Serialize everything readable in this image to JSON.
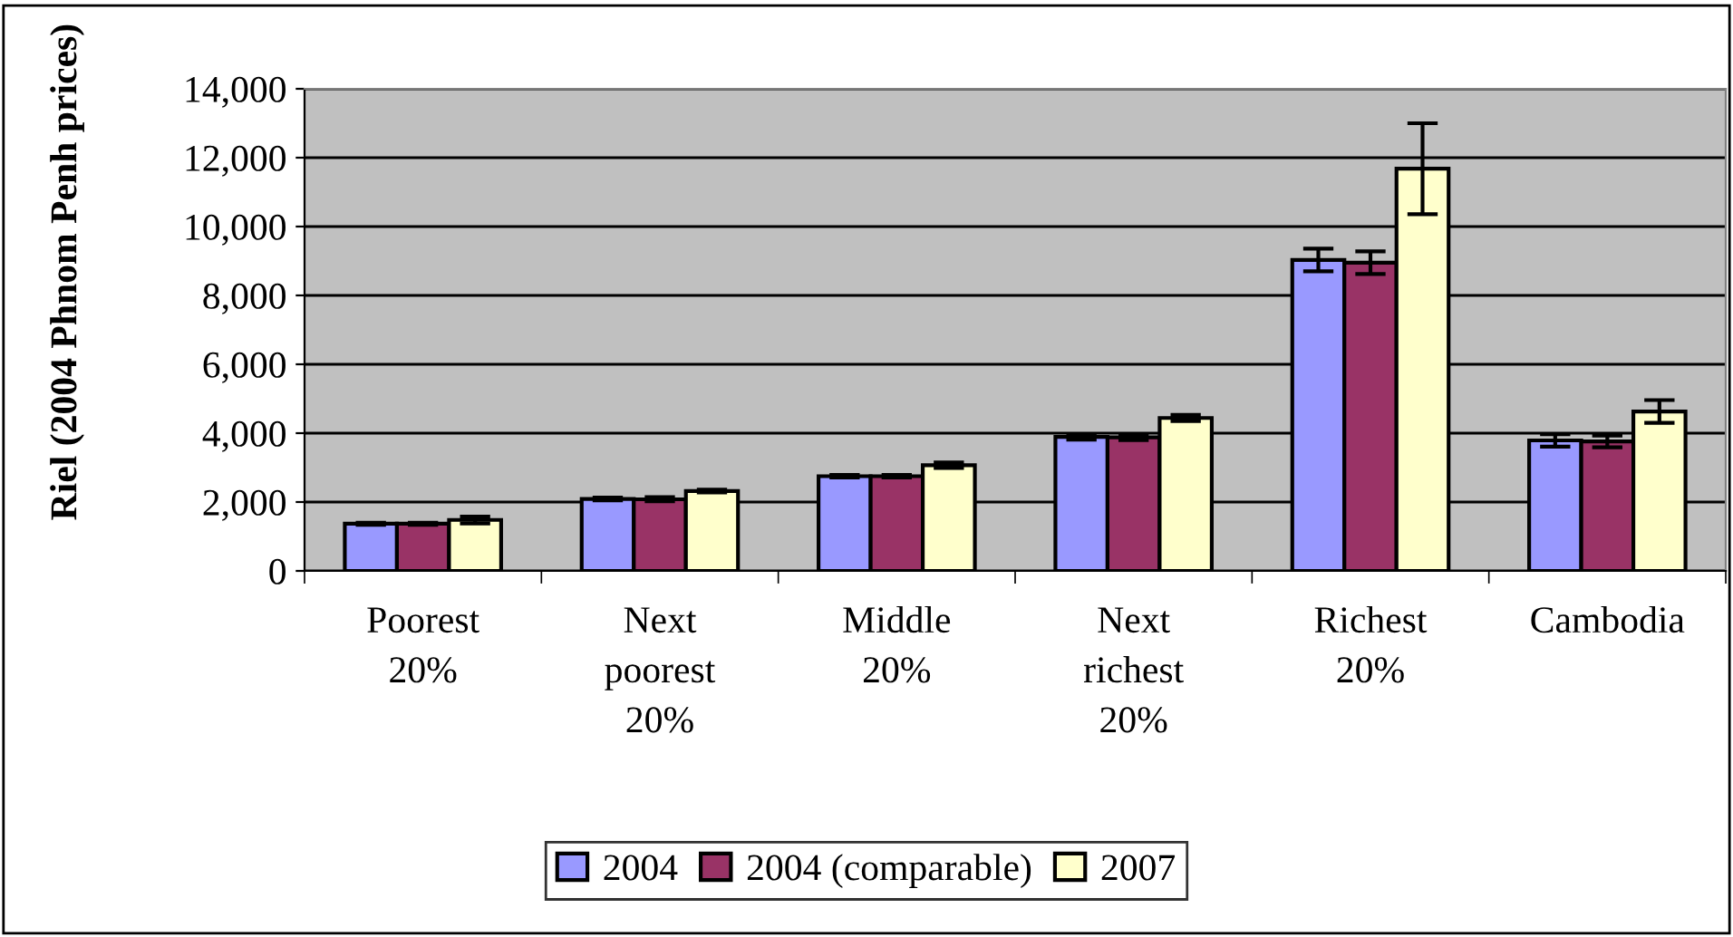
{
  "chart_data": {
    "type": "bar",
    "ylabel": "Riel (2004 Phnom Penh prices)",
    "categories": [
      "Poorest\n20%",
      "Next\npoorest\n20%",
      "Middle\n20%",
      "Next\nrichest\n20%",
      "Richest\n20%",
      "Cambodia"
    ],
    "series": [
      {
        "name": "2004",
        "color": "#9999ff",
        "values": [
          1370,
          2090,
          2750,
          3890,
          9030,
          3790
        ],
        "errors": [
          30,
          40,
          40,
          80,
          330,
          180
        ]
      },
      {
        "name": "2004 (comparable)",
        "color": "#993366",
        "values": [
          1370,
          2080,
          2750,
          3880,
          8950,
          3760
        ],
        "errors": [
          30,
          60,
          40,
          80,
          330,
          170
        ]
      },
      {
        "name": "2007",
        "color": "#ffffcc",
        "values": [
          1480,
          2320,
          3070,
          4440,
          11680,
          4630
        ],
        "errors": [
          100,
          40,
          80,
          90,
          1320,
          330
        ]
      }
    ],
    "ylim": [
      0,
      14000
    ],
    "yticks": [
      {
        "value": 0,
        "label": "0"
      },
      {
        "value": 2000,
        "label": "2,000"
      },
      {
        "value": 4000,
        "label": "4,000"
      },
      {
        "value": 6000,
        "label": "6,000"
      },
      {
        "value": 8000,
        "label": "8,000"
      },
      {
        "value": 10000,
        "label": "10,000"
      },
      {
        "value": 12000,
        "label": "12,000"
      },
      {
        "value": 14000,
        "label": "14,000"
      }
    ],
    "grid": "y",
    "legend": "bottom"
  }
}
